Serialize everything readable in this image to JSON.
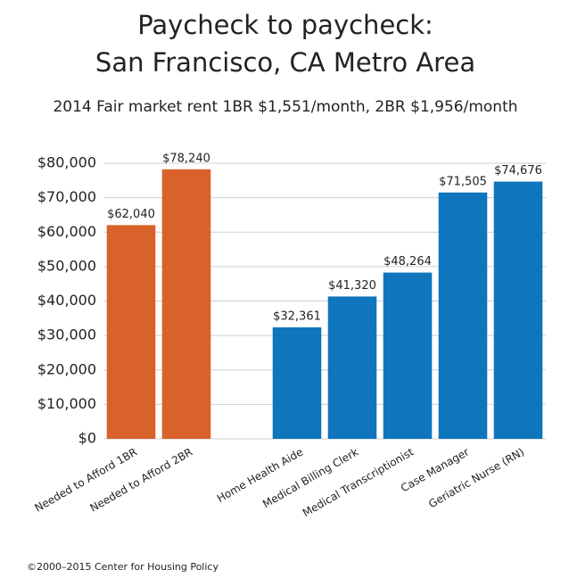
{
  "chart_data": {
    "type": "bar",
    "title": [
      "Paycheck to paycheck:",
      "San Francisco, CA Metro Area"
    ],
    "subtitle": "2014 Fair market rent 1BR $1,551/month,  2BR $1,956/month",
    "categories": [
      "Needed to Afford 1BR",
      "Needed to Afford 2BR",
      null,
      "Home Health Aide",
      "Medical Billing Clerk",
      "Medical Transcriptionist",
      "Case Manager",
      "Geriatric Nurse (RN)"
    ],
    "values": [
      62040,
      78240,
      null,
      32361,
      41320,
      48264,
      71505,
      74676
    ],
    "value_labels": [
      "$62,040",
      "$78,240",
      null,
      "$32,361",
      "$41,320",
      "$48,264",
      "$71,505",
      "$74,676"
    ],
    "colors": [
      "#d9622b",
      "#d9622b",
      null,
      "#0f75bc",
      "#0f75bc",
      "#0f75bc",
      "#0f75bc",
      "#0f75bc"
    ],
    "ylim": [
      0,
      80000
    ],
    "yticks": [
      {
        "value": 0,
        "label": "$0"
      },
      {
        "value": 10000,
        "label": "$10,000"
      },
      {
        "value": 20000,
        "label": "$20,000"
      },
      {
        "value": 30000,
        "label": "$30,000"
      },
      {
        "value": 40000,
        "label": "$40,000"
      },
      {
        "value": 50000,
        "label": "$50,000"
      },
      {
        "value": 60000,
        "label": "$60,000"
      },
      {
        "value": 70000,
        "label": "$70,000"
      },
      {
        "value": 80000,
        "label": "$80,000"
      }
    ],
    "grid": true,
    "source": "©2000–2015 Center for Housing Policy"
  }
}
